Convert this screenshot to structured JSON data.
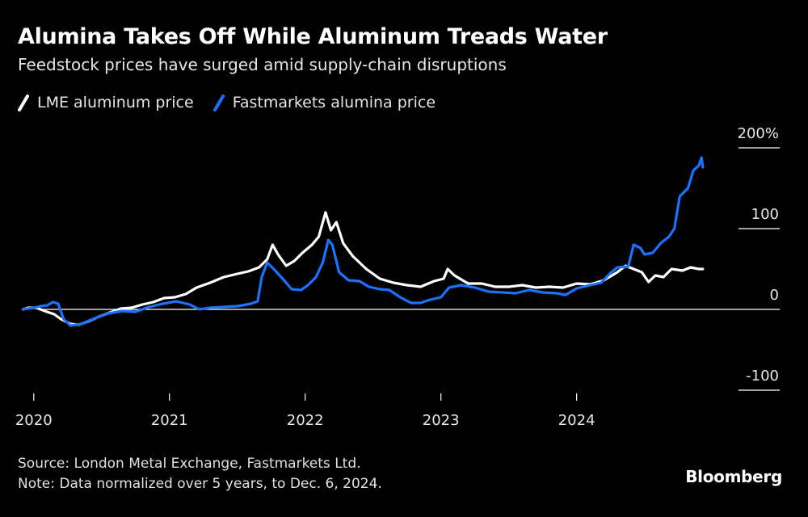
{
  "header": {
    "title": "Alumina Takes Off While Aluminum Treads Water",
    "subtitle": "Feedstock prices have surged amid supply-chain disruptions"
  },
  "legend": [
    {
      "label": "LME aluminum price",
      "color": "#ffffff"
    },
    {
      "label": "Fastmarkets alumina price",
      "color": "#1a73ff"
    }
  ],
  "footer": {
    "source": "Source: London Metal Exchange, Fastmarkets Ltd.",
    "note": "Note: Data normalized over 5 years, to Dec. 6, 2024."
  },
  "brand": "Bloomberg",
  "chart_data": {
    "type": "line",
    "title": "Alumina Takes Off While Aluminum Treads Water",
    "subtitle": "Feedstock prices have surged amid supply-chain disruptions",
    "y_ticks": [
      {
        "value": 200,
        "label": "200%"
      },
      {
        "value": 100,
        "label": "100"
      },
      {
        "value": 0,
        "label": "0"
      },
      {
        "value": -100,
        "label": "-100"
      }
    ],
    "x_ticks": [
      {
        "value": 2020.0,
        "label": "2020"
      },
      {
        "value": 2021.0,
        "label": "2021"
      },
      {
        "value": 2022.0,
        "label": "2022"
      },
      {
        "value": 2023.0,
        "label": "2023"
      },
      {
        "value": 2024.0,
        "label": "2024"
      }
    ],
    "xlim": [
      2019.93,
      2025.05
    ],
    "ylim": [
      -100,
      200
    ],
    "grid": false,
    "legend_position": "top-left",
    "series": [
      {
        "name": "LME aluminum price",
        "color": "#ffffff",
        "points": [
          [
            2019.92,
            0
          ],
          [
            2019.96,
            2
          ],
          [
            2020.02,
            2
          ],
          [
            2020.08,
            -2
          ],
          [
            2020.15,
            -6
          ],
          [
            2020.2,
            -12
          ],
          [
            2020.27,
            -18
          ],
          [
            2020.33,
            -19
          ],
          [
            2020.4,
            -15
          ],
          [
            2020.48,
            -9
          ],
          [
            2020.56,
            -4
          ],
          [
            2020.64,
            1
          ],
          [
            2020.72,
            2
          ],
          [
            2020.8,
            6
          ],
          [
            2020.88,
            9
          ],
          [
            2020.96,
            14
          ],
          [
            2021.04,
            15
          ],
          [
            2021.12,
            19
          ],
          [
            2021.2,
            27
          ],
          [
            2021.3,
            33
          ],
          [
            2021.4,
            40
          ],
          [
            2021.5,
            44
          ],
          [
            2021.58,
            47
          ],
          [
            2021.66,
            52
          ],
          [
            2021.72,
            62
          ],
          [
            2021.76,
            80
          ],
          [
            2021.8,
            68
          ],
          [
            2021.86,
            54
          ],
          [
            2021.92,
            60
          ],
          [
            2021.98,
            70
          ],
          [
            2022.05,
            80
          ],
          [
            2022.1,
            90
          ],
          [
            2022.15,
            120
          ],
          [
            2022.19,
            98
          ],
          [
            2022.23,
            108
          ],
          [
            2022.28,
            82
          ],
          [
            2022.35,
            66
          ],
          [
            2022.45,
            50
          ],
          [
            2022.55,
            38
          ],
          [
            2022.65,
            33
          ],
          [
            2022.75,
            30
          ],
          [
            2022.85,
            28
          ],
          [
            2022.95,
            35
          ],
          [
            2023.02,
            38
          ],
          [
            2023.05,
            50
          ],
          [
            2023.1,
            42
          ],
          [
            2023.2,
            32
          ],
          [
            2023.3,
            32
          ],
          [
            2023.4,
            28
          ],
          [
            2023.5,
            28
          ],
          [
            2023.6,
            30
          ],
          [
            2023.7,
            27
          ],
          [
            2023.8,
            28
          ],
          [
            2023.9,
            27
          ],
          [
            2024.0,
            32
          ],
          [
            2024.1,
            31
          ],
          [
            2024.2,
            36
          ],
          [
            2024.3,
            46
          ],
          [
            2024.36,
            54
          ],
          [
            2024.42,
            50
          ],
          [
            2024.48,
            46
          ],
          [
            2024.53,
            34
          ],
          [
            2024.58,
            42
          ],
          [
            2024.64,
            40
          ],
          [
            2024.7,
            50
          ],
          [
            2024.78,
            48
          ],
          [
            2024.84,
            52
          ],
          [
            2024.9,
            50
          ],
          [
            2024.93,
            50
          ]
        ]
      },
      {
        "name": "Fastmarkets alumina price",
        "color": "#1a73ff",
        "points": [
          [
            2019.92,
            0
          ],
          [
            2019.96,
            1
          ],
          [
            2020.0,
            2
          ],
          [
            2020.05,
            4
          ],
          [
            2020.1,
            5
          ],
          [
            2020.14,
            9
          ],
          [
            2020.18,
            7
          ],
          [
            2020.22,
            -12
          ],
          [
            2020.27,
            -20
          ],
          [
            2020.35,
            -18
          ],
          [
            2020.45,
            -11
          ],
          [
            2020.55,
            -5
          ],
          [
            2020.65,
            -2
          ],
          [
            2020.75,
            -3
          ],
          [
            2020.85,
            3
          ],
          [
            2020.95,
            7
          ],
          [
            2021.05,
            10
          ],
          [
            2021.15,
            6
          ],
          [
            2021.22,
            0
          ],
          [
            2021.3,
            2
          ],
          [
            2021.4,
            3
          ],
          [
            2021.5,
            4
          ],
          [
            2021.6,
            7
          ],
          [
            2021.65,
            10
          ],
          [
            2021.68,
            40
          ],
          [
            2021.72,
            58
          ],
          [
            2021.78,
            48
          ],
          [
            2021.85,
            35
          ],
          [
            2021.9,
            25
          ],
          [
            2021.97,
            24
          ],
          [
            2022.02,
            30
          ],
          [
            2022.08,
            40
          ],
          [
            2022.13,
            58
          ],
          [
            2022.17,
            86
          ],
          [
            2022.2,
            80
          ],
          [
            2022.25,
            46
          ],
          [
            2022.32,
            36
          ],
          [
            2022.4,
            35
          ],
          [
            2022.47,
            28
          ],
          [
            2022.55,
            25
          ],
          [
            2022.62,
            24
          ],
          [
            2022.7,
            15
          ],
          [
            2022.78,
            8
          ],
          [
            2022.85,
            8
          ],
          [
            2022.92,
            12
          ],
          [
            2023.0,
            15
          ],
          [
            2023.06,
            27
          ],
          [
            2023.15,
            30
          ],
          [
            2023.25,
            27
          ],
          [
            2023.35,
            22
          ],
          [
            2023.45,
            21
          ],
          [
            2023.55,
            20
          ],
          [
            2023.65,
            24
          ],
          [
            2023.75,
            21
          ],
          [
            2023.85,
            20
          ],
          [
            2023.92,
            18
          ],
          [
            2024.0,
            26
          ],
          [
            2024.1,
            30
          ],
          [
            2024.18,
            33
          ],
          [
            2024.25,
            45
          ],
          [
            2024.3,
            52
          ],
          [
            2024.38,
            53
          ],
          [
            2024.42,
            80
          ],
          [
            2024.47,
            76
          ],
          [
            2024.5,
            68
          ],
          [
            2024.56,
            70
          ],
          [
            2024.62,
            82
          ],
          [
            2024.68,
            90
          ],
          [
            2024.72,
            100
          ],
          [
            2024.76,
            140
          ],
          [
            2024.82,
            150
          ],
          [
            2024.86,
            172
          ],
          [
            2024.9,
            178
          ],
          [
            2024.92,
            188
          ],
          [
            2024.93,
            176
          ]
        ]
      }
    ]
  }
}
